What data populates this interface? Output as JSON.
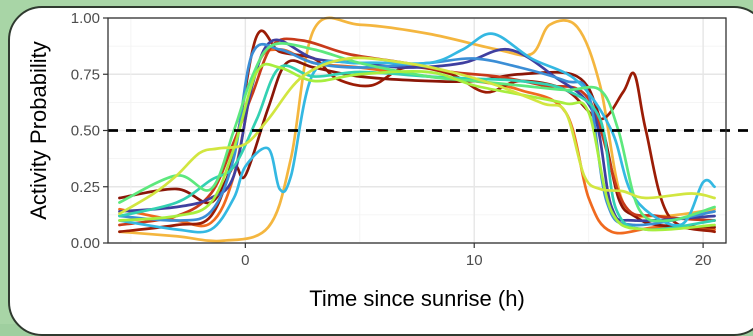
{
  "chart_data": {
    "type": "line",
    "title": "",
    "xlabel": "Time since sunrise (h)",
    "ylabel": "Activity Probability",
    "xlim": [
      -6,
      21
    ],
    "ylim": [
      0,
      1
    ],
    "x_ticks": [
      0,
      10,
      20
    ],
    "x_tick_labels": [
      "0",
      "10",
      "20"
    ],
    "y_ticks": [
      0,
      0.25,
      0.5,
      0.75,
      1
    ],
    "y_tick_labels": [
      "0.00",
      "0.25",
      "0.50",
      "0.75",
      "1.00"
    ],
    "grid": true,
    "legend": "none",
    "reference_line": {
      "y": 0.5,
      "style": "dashed",
      "color": "#000000"
    },
    "series": [
      {
        "color": "#f4b63f",
        "points": [
          [
            -5.5,
            0.05
          ],
          [
            -3,
            0.03
          ],
          [
            -1,
            0.01
          ],
          [
            1,
            0.07
          ],
          [
            2,
            0.38
          ],
          [
            3,
            0.95
          ],
          [
            5,
            0.97
          ],
          [
            8,
            0.93
          ],
          [
            11,
            0.86
          ],
          [
            12.5,
            0.84
          ],
          [
            13.3,
            0.97
          ],
          [
            14.5,
            0.96
          ],
          [
            15.5,
            0.7
          ],
          [
            16.5,
            0.18
          ],
          [
            18,
            0.12
          ],
          [
            20.5,
            0.15
          ]
        ]
      },
      {
        "color": "#f06a1f",
        "points": [
          [
            -5.5,
            0.15
          ],
          [
            -3,
            0.1
          ],
          [
            -1.5,
            0.09
          ],
          [
            -0.5,
            0.3
          ],
          [
            0.5,
            0.78
          ],
          [
            1.5,
            0.86
          ],
          [
            3,
            0.8
          ],
          [
            5,
            0.78
          ],
          [
            8,
            0.74
          ],
          [
            10,
            0.72
          ],
          [
            12,
            0.68
          ],
          [
            14,
            0.58
          ],
          [
            15,
            0.2
          ],
          [
            16,
            0.05
          ],
          [
            18,
            0.07
          ],
          [
            20.5,
            0.06
          ]
        ]
      },
      {
        "color": "#9b1c06",
        "points": [
          [
            -5.5,
            0.05
          ],
          [
            -3,
            0.08
          ],
          [
            -1.5,
            0.12
          ],
          [
            -0.5,
            0.4
          ],
          [
            0.5,
            0.92
          ],
          [
            1.5,
            0.85
          ],
          [
            3,
            0.82
          ],
          [
            4,
            0.73
          ],
          [
            5.5,
            0.7
          ],
          [
            7,
            0.78
          ],
          [
            9,
            0.75
          ],
          [
            10.5,
            0.67
          ],
          [
            12,
            0.72
          ],
          [
            14,
            0.68
          ],
          [
            15.5,
            0.55
          ],
          [
            16.5,
            0.67
          ],
          [
            17,
            0.75
          ],
          [
            17.5,
            0.5
          ],
          [
            18.5,
            0.12
          ],
          [
            20.5,
            0.05
          ]
        ]
      },
      {
        "color": "#8a1607",
        "points": [
          [
            -5.5,
            0.2
          ],
          [
            -3,
            0.24
          ],
          [
            -1.5,
            0.18
          ],
          [
            -0.5,
            0.34
          ],
          [
            0,
            0.3
          ],
          [
            1,
            0.6
          ],
          [
            1.8,
            0.8
          ],
          [
            3,
            0.78
          ],
          [
            5,
            0.74
          ],
          [
            8,
            0.72
          ],
          [
            10,
            0.72
          ],
          [
            12,
            0.75
          ],
          [
            14.5,
            0.74
          ],
          [
            15.5,
            0.55
          ],
          [
            16.3,
            0.2
          ],
          [
            17,
            0.12
          ],
          [
            18,
            0.08
          ],
          [
            20.5,
            0.07
          ]
        ]
      },
      {
        "color": "#c83a1a",
        "points": [
          [
            -5.5,
            0.08
          ],
          [
            -3,
            0.12
          ],
          [
            -1.5,
            0.22
          ],
          [
            -0.5,
            0.45
          ],
          [
            0.3,
            0.66
          ],
          [
            1.2,
            0.88
          ],
          [
            2.5,
            0.9
          ],
          [
            4.5,
            0.84
          ],
          [
            7,
            0.8
          ],
          [
            9,
            0.76
          ],
          [
            11,
            0.74
          ],
          [
            13,
            0.7
          ],
          [
            15,
            0.64
          ],
          [
            16.5,
            0.18
          ],
          [
            18,
            0.12
          ],
          [
            20.5,
            0.1
          ]
        ]
      },
      {
        "color": "#3f3fa0",
        "points": [
          [
            -5.5,
            0.14
          ],
          [
            -3,
            0.16
          ],
          [
            -1.5,
            0.2
          ],
          [
            -0.5,
            0.3
          ],
          [
            0.3,
            0.7
          ],
          [
            1.2,
            0.9
          ],
          [
            3,
            0.82
          ],
          [
            5,
            0.8
          ],
          [
            7,
            0.78
          ],
          [
            9.5,
            0.8
          ],
          [
            11.5,
            0.86
          ],
          [
            13.5,
            0.74
          ],
          [
            15.2,
            0.58
          ],
          [
            16,
            0.16
          ],
          [
            17,
            0.1
          ],
          [
            20.5,
            0.12
          ]
        ]
      },
      {
        "color": "#3b8ed6",
        "points": [
          [
            -5.5,
            0.12
          ],
          [
            -3,
            0.1
          ],
          [
            -1.5,
            0.14
          ],
          [
            -0.5,
            0.38
          ],
          [
            0.3,
            0.84
          ],
          [
            1.5,
            0.86
          ],
          [
            3,
            0.8
          ],
          [
            5,
            0.78
          ],
          [
            8,
            0.8
          ],
          [
            10,
            0.82
          ],
          [
            12,
            0.78
          ],
          [
            14,
            0.72
          ],
          [
            15,
            0.66
          ],
          [
            15.8,
            0.18
          ],
          [
            17,
            0.08
          ],
          [
            20.5,
            0.14
          ]
        ]
      },
      {
        "color": "#34b8e2",
        "points": [
          [
            -5.5,
            0.1
          ],
          [
            -3,
            0.06
          ],
          [
            -1.5,
            0.06
          ],
          [
            -0.5,
            0.2
          ],
          [
            0,
            0.34
          ],
          [
            1,
            0.42
          ],
          [
            1.5,
            0.24
          ],
          [
            2,
            0.3
          ],
          [
            3,
            0.76
          ],
          [
            5,
            0.8
          ],
          [
            8,
            0.8
          ],
          [
            9.5,
            0.86
          ],
          [
            10.8,
            0.93
          ],
          [
            12.5,
            0.82
          ],
          [
            14.5,
            0.72
          ],
          [
            16,
            0.5
          ],
          [
            17,
            0.2
          ],
          [
            19,
            0.08
          ],
          [
            20,
            0.27
          ],
          [
            20.5,
            0.25
          ]
        ]
      },
      {
        "color": "#33d1b2",
        "points": [
          [
            -5.5,
            0.12
          ],
          [
            -3,
            0.18
          ],
          [
            -1.5,
            0.28
          ],
          [
            -0.5,
            0.34
          ],
          [
            0.5,
            0.55
          ],
          [
            1.5,
            0.78
          ],
          [
            3,
            0.74
          ],
          [
            5,
            0.76
          ],
          [
            8,
            0.74
          ],
          [
            10,
            0.73
          ],
          [
            12,
            0.72
          ],
          [
            14,
            0.68
          ],
          [
            15.5,
            0.55
          ],
          [
            16.2,
            0.15
          ],
          [
            17.5,
            0.06
          ],
          [
            20.5,
            0.1
          ]
        ]
      },
      {
        "color": "#5de87d",
        "points": [
          [
            -5.5,
            0.18
          ],
          [
            -3,
            0.3
          ],
          [
            -1.5,
            0.24
          ],
          [
            -0.5,
            0.5
          ],
          [
            0.3,
            0.74
          ],
          [
            1.2,
            0.88
          ],
          [
            3,
            0.86
          ],
          [
            5,
            0.8
          ],
          [
            8,
            0.74
          ],
          [
            10,
            0.72
          ],
          [
            12,
            0.7
          ],
          [
            14,
            0.68
          ],
          [
            15.5,
            0.68
          ],
          [
            16.3,
            0.5
          ],
          [
            17.2,
            0.15
          ],
          [
            18.5,
            0.1
          ],
          [
            20.5,
            0.16
          ]
        ]
      },
      {
        "color": "#a7ee3e",
        "points": [
          [
            -5.5,
            0.1
          ],
          [
            -3,
            0.12
          ],
          [
            -1.5,
            0.18
          ],
          [
            -0.5,
            0.42
          ],
          [
            0.5,
            0.76
          ],
          [
            1.5,
            0.78
          ],
          [
            3,
            0.72
          ],
          [
            5,
            0.75
          ],
          [
            8,
            0.76
          ],
          [
            10,
            0.7
          ],
          [
            12,
            0.66
          ],
          [
            14,
            0.62
          ],
          [
            15,
            0.58
          ],
          [
            16,
            0.14
          ],
          [
            17.5,
            0.06
          ],
          [
            20.5,
            0.08
          ]
        ]
      },
      {
        "color": "#d2e640",
        "points": [
          [
            -5.5,
            0.13
          ],
          [
            -4,
            0.22
          ],
          [
            -3,
            0.3
          ],
          [
            -2,
            0.4
          ],
          [
            -1.2,
            0.42
          ],
          [
            0,
            0.44
          ],
          [
            1,
            0.55
          ],
          [
            2.5,
            0.74
          ],
          [
            4.5,
            0.82
          ],
          [
            7,
            0.8
          ],
          [
            9,
            0.76
          ],
          [
            11,
            0.7
          ],
          [
            13,
            0.62
          ],
          [
            14,
            0.58
          ],
          [
            14.8,
            0.3
          ],
          [
            15.5,
            0.24
          ],
          [
            16.5,
            0.23
          ],
          [
            17.5,
            0.2
          ],
          [
            19.5,
            0.22
          ],
          [
            20.5,
            0.2
          ]
        ]
      }
    ]
  }
}
